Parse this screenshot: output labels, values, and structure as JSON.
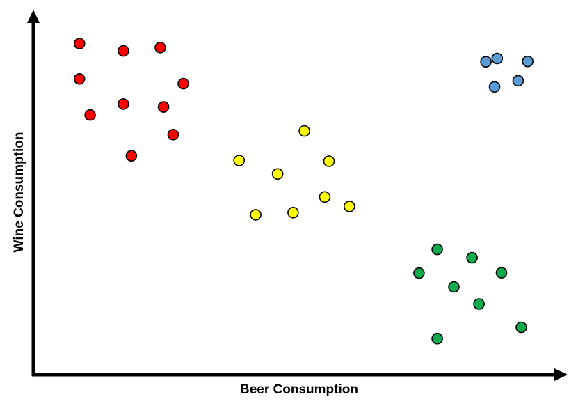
{
  "chart_data": {
    "type": "scatter",
    "xlabel": "Beer Consumption",
    "ylabel": "Wine Consumption",
    "xlim": [
      0,
      100
    ],
    "ylim": [
      0,
      100
    ],
    "grid": false,
    "series": [
      {
        "color": "#ff0000",
        "points": [
          [
            8.6,
            90.9
          ],
          [
            16.8,
            88.9
          ],
          [
            23.7,
            89.8
          ],
          [
            8.6,
            81.2
          ],
          [
            28.0,
            79.9
          ],
          [
            16.8,
            74.3
          ],
          [
            24.3,
            73.5
          ],
          [
            10.6,
            71.3
          ],
          [
            26.1,
            65.9
          ],
          [
            18.3,
            60.1
          ]
        ]
      },
      {
        "color": "#ffff00",
        "points": [
          [
            50.6,
            66.9
          ],
          [
            38.4,
            58.8
          ],
          [
            55.2,
            58.6
          ],
          [
            45.6,
            55.1
          ],
          [
            54.4,
            48.8
          ],
          [
            59.0,
            46.2
          ],
          [
            41.5,
            43.9
          ],
          [
            48.5,
            44.5
          ]
        ]
      },
      {
        "color": "#0bab4b",
        "points": [
          [
            75.4,
            34.4
          ],
          [
            81.9,
            32.1
          ],
          [
            72.0,
            27.9
          ],
          [
            87.4,
            28.0
          ],
          [
            78.5,
            24.1
          ],
          [
            83.2,
            19.4
          ],
          [
            91.1,
            13.0
          ],
          [
            75.4,
            9.9
          ]
        ]
      },
      {
        "color": "#5b9bd5",
        "points": [
          [
            84.5,
            85.9
          ],
          [
            86.6,
            86.8
          ],
          [
            92.3,
            86.0
          ],
          [
            86.1,
            79.0
          ],
          [
            90.5,
            80.7
          ]
        ]
      }
    ]
  }
}
